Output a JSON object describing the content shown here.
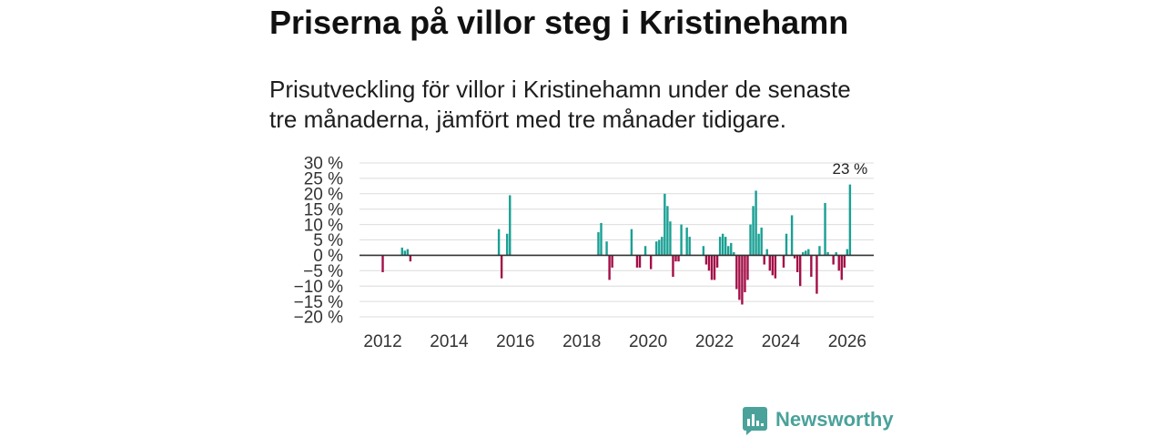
{
  "colors": {
    "positive": "#19a094",
    "negative": "#a30f47",
    "zero_line": "#333333",
    "grid": "#dcdcdc",
    "brand": "#4aa29a"
  },
  "brand": {
    "name": "Newsworthy",
    "icon": "newsworthy-logo-icon"
  },
  "chart_data": {
    "type": "bar",
    "title": "Priserna på villor steg i Kristinehamn",
    "subtitle": "Prisutveckling för villor i Kristinehamn under de senaste tre månaderna, jämfört med tre månader tidigare.",
    "grid": true,
    "ylim": [
      -20,
      30
    ],
    "xlim": [
      2011.3,
      2026.8
    ],
    "yticks": [
      30,
      25,
      20,
      15,
      10,
      5,
      0,
      -5,
      -10,
      -15,
      -20
    ],
    "ytick_labels": [
      "30 %",
      "25 %",
      "20 %",
      "15 %",
      "10 %",
      "5 %",
      "0 %",
      "−5 %",
      "−10 %",
      "−15 %",
      "−20 %"
    ],
    "xticks": [
      2012,
      2014,
      2016,
      2018,
      2020,
      2022,
      2024,
      2026
    ],
    "xtick_labels": [
      "2012",
      "2014",
      "2016",
      "2018",
      "2020",
      "2022",
      "2024",
      "2026"
    ],
    "points": [
      {
        "date": "2012-01",
        "value": -5.5
      },
      {
        "date": "2012-08",
        "value": 2.5
      },
      {
        "date": "2012-09",
        "value": 1.5
      },
      {
        "date": "2012-10",
        "value": 2
      },
      {
        "date": "2012-11",
        "value": -2
      },
      {
        "date": "2015-07",
        "value": 8.5
      },
      {
        "date": "2015-08",
        "value": -7.5
      },
      {
        "date": "2015-10",
        "value": 7
      },
      {
        "date": "2015-11",
        "value": 19.5
      },
      {
        "date": "2018-07",
        "value": 7.5
      },
      {
        "date": "2018-08",
        "value": 10.5
      },
      {
        "date": "2018-10",
        "value": 4.5
      },
      {
        "date": "2018-11",
        "value": -8
      },
      {
        "date": "2018-12",
        "value": -4
      },
      {
        "date": "2019-07",
        "value": 8.5
      },
      {
        "date": "2019-09",
        "value": -4
      },
      {
        "date": "2019-10",
        "value": -4
      },
      {
        "date": "2019-12",
        "value": 3
      },
      {
        "date": "2020-02",
        "value": -4.5
      },
      {
        "date": "2020-04",
        "value": 4.5
      },
      {
        "date": "2020-05",
        "value": 5
      },
      {
        "date": "2020-06",
        "value": 6
      },
      {
        "date": "2020-07",
        "value": 20
      },
      {
        "date": "2020-08",
        "value": 16
      },
      {
        "date": "2020-09",
        "value": 11
      },
      {
        "date": "2020-10",
        "value": -7
      },
      {
        "date": "2020-11",
        "value": -2
      },
      {
        "date": "2020-12",
        "value": -2
      },
      {
        "date": "2021-01",
        "value": 10
      },
      {
        "date": "2021-03",
        "value": 9
      },
      {
        "date": "2021-04",
        "value": 6
      },
      {
        "date": "2021-09",
        "value": 3
      },
      {
        "date": "2021-10",
        "value": -3
      },
      {
        "date": "2021-11",
        "value": -5
      },
      {
        "date": "2021-12",
        "value": -8
      },
      {
        "date": "2022-01",
        "value": -8
      },
      {
        "date": "2022-02",
        "value": -4
      },
      {
        "date": "2022-03",
        "value": 6
      },
      {
        "date": "2022-04",
        "value": 7
      },
      {
        "date": "2022-05",
        "value": 6
      },
      {
        "date": "2022-06",
        "value": 3
      },
      {
        "date": "2022-07",
        "value": 4
      },
      {
        "date": "2022-08",
        "value": 1
      },
      {
        "date": "2022-09",
        "value": -11
      },
      {
        "date": "2022-10",
        "value": -14.5
      },
      {
        "date": "2022-11",
        "value": -16
      },
      {
        "date": "2022-12",
        "value": -12
      },
      {
        "date": "2023-01",
        "value": -8
      },
      {
        "date": "2023-02",
        "value": 10
      },
      {
        "date": "2023-03",
        "value": 16
      },
      {
        "date": "2023-04",
        "value": 21
      },
      {
        "date": "2023-05",
        "value": 7
      },
      {
        "date": "2023-06",
        "value": 9
      },
      {
        "date": "2023-07",
        "value": -3
      },
      {
        "date": "2023-08",
        "value": 2
      },
      {
        "date": "2023-09",
        "value": -5
      },
      {
        "date": "2023-10",
        "value": -6.5
      },
      {
        "date": "2023-11",
        "value": -7.5
      },
      {
        "date": "2024-02",
        "value": -4
      },
      {
        "date": "2024-03",
        "value": 7
      },
      {
        "date": "2024-05",
        "value": 13
      },
      {
        "date": "2024-06",
        "value": -1
      },
      {
        "date": "2024-07",
        "value": -5.5
      },
      {
        "date": "2024-08",
        "value": -10
      },
      {
        "date": "2024-09",
        "value": 1
      },
      {
        "date": "2024-10",
        "value": 1.5
      },
      {
        "date": "2024-11",
        "value": 2
      },
      {
        "date": "2024-12",
        "value": -7
      },
      {
        "date": "2025-02",
        "value": -12.5
      },
      {
        "date": "2025-03",
        "value": 3
      },
      {
        "date": "2025-05",
        "value": 17
      },
      {
        "date": "2025-06",
        "value": 1
      },
      {
        "date": "2025-08",
        "value": -3
      },
      {
        "date": "2025-09",
        "value": 1
      },
      {
        "date": "2025-10",
        "value": -5
      },
      {
        "date": "2025-11",
        "value": -8
      },
      {
        "date": "2025-12",
        "value": -4
      },
      {
        "date": "2026-01",
        "value": 2
      },
      {
        "date": "2026-02",
        "value": 23
      }
    ],
    "annotations": [
      {
        "date": "2026-02",
        "value": 23,
        "label": "23 %"
      }
    ]
  }
}
